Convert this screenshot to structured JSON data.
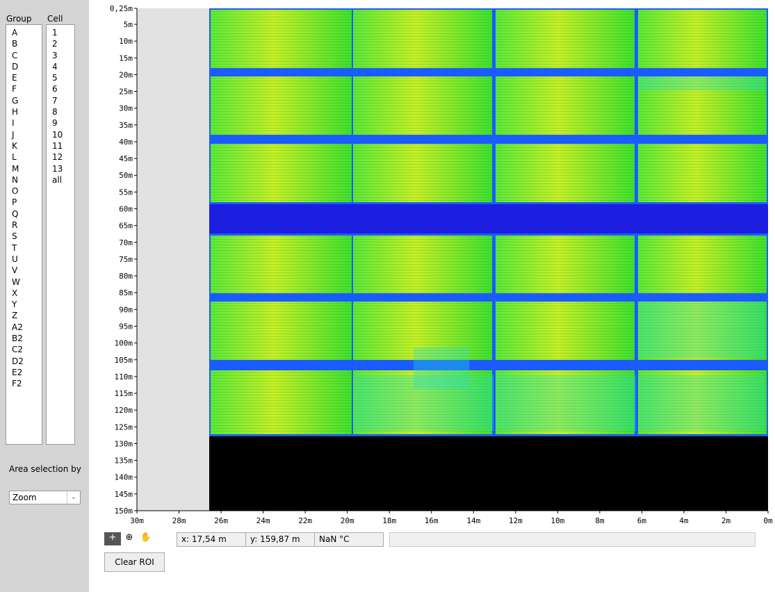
{
  "sidebar": {
    "group_header": "Group",
    "cell_header": "Cell",
    "groups": [
      "A",
      "B",
      "C",
      "D",
      "E",
      "F",
      "G",
      "H",
      "I",
      "J",
      "K",
      "L",
      "M",
      "N",
      "O",
      "P",
      "Q",
      "R",
      "S",
      "T",
      "U",
      "V",
      "W",
      "X",
      "Y",
      "Z",
      "A2",
      "B2",
      "C2",
      "D2",
      "E2",
      "F2"
    ],
    "cells": [
      "1",
      "2",
      "3",
      "4",
      "5",
      "6",
      "7",
      "8",
      "9",
      "10",
      "11",
      "12",
      "13",
      "all"
    ],
    "area_label": "Area selection by",
    "area_value": "Zoom"
  },
  "plot": {
    "y_ticks": [
      "0,25m",
      "5m",
      "10m",
      "15m",
      "20m",
      "25m",
      "30m",
      "35m",
      "40m",
      "45m",
      "50m",
      "55m",
      "60m",
      "65m",
      "70m",
      "75m",
      "80m",
      "85m",
      "90m",
      "95m",
      "100m",
      "105m",
      "110m",
      "115m",
      "120m",
      "125m",
      "130m",
      "135m",
      "140m",
      "145m",
      "150m"
    ],
    "x_ticks": [
      "30m",
      "28m",
      "26m",
      "24m",
      "22m",
      "20m",
      "18m",
      "16m",
      "14m",
      "12m",
      "10m",
      "8m",
      "6m",
      "4m",
      "2m",
      "0m"
    ]
  },
  "status": {
    "x": "x: 17,54 m",
    "y": "y: 159,87 m",
    "temp": "NaN °C"
  },
  "button": "Clear ROI"
}
